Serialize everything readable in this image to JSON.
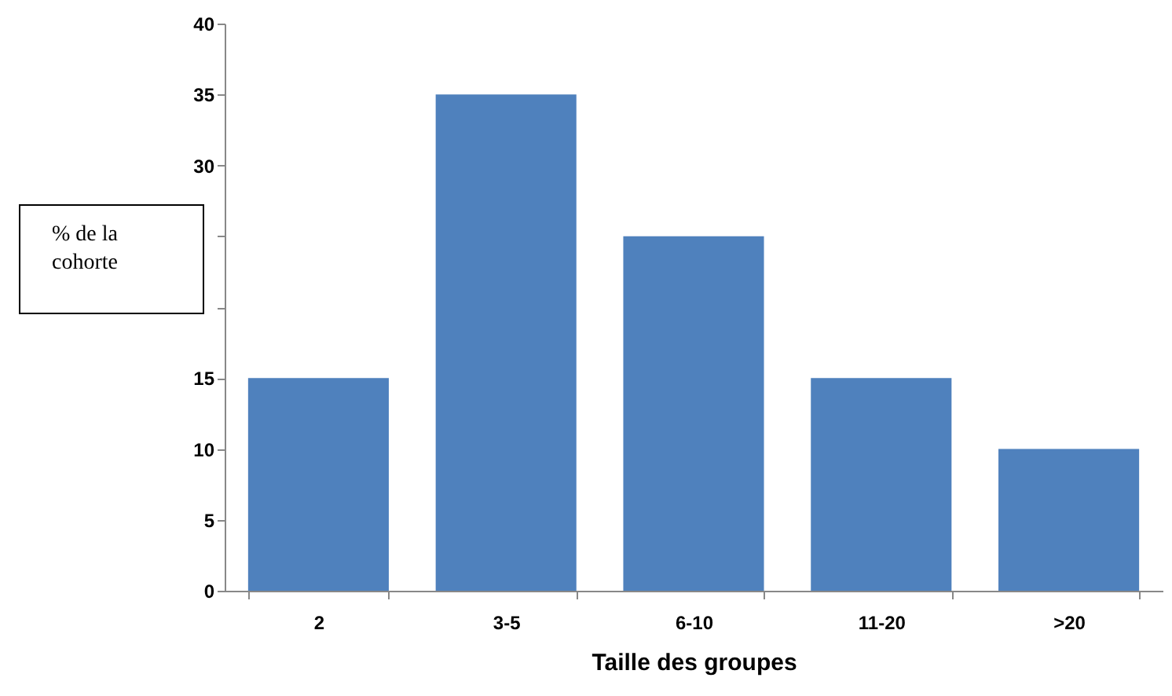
{
  "chart_data": {
    "type": "bar",
    "xlabel": "Taille des groupes",
    "ylabel": "% de la cohorte",
    "categories": [
      "2",
      "3-5",
      "6-10",
      "11-20",
      ">20"
    ],
    "values": [
      15,
      35,
      25,
      15,
      10
    ],
    "color": "#4f81bd",
    "ylim": [
      0,
      40
    ],
    "yticks": [
      0,
      5,
      10,
      15,
      {
        "value": 20,
        "label": null
      },
      {
        "value": 25,
        "label": null
      },
      30,
      35,
      40
    ],
    "grid": false
  }
}
